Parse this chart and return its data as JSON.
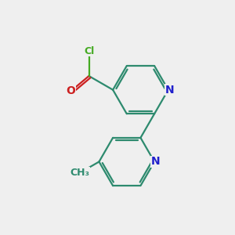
{
  "bg_color": "#efefef",
  "bond_color": "#2d8a6e",
  "N_color": "#2020cc",
  "O_color": "#cc2020",
  "Cl_color": "#44aa22",
  "line_width": 1.6,
  "font_size_N": 10,
  "font_size_O": 10,
  "font_size_Cl": 9,
  "font_size_CH3": 9,
  "figsize": [
    3.0,
    3.0
  ],
  "dpi": 100,
  "xlim": [
    0,
    10
  ],
  "ylim": [
    0,
    10
  ]
}
